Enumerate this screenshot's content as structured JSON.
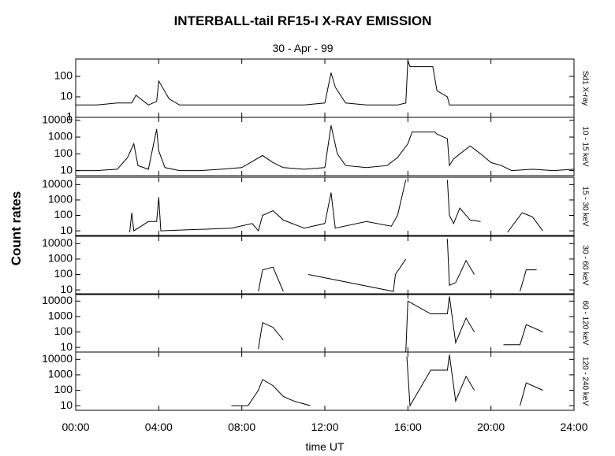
{
  "title": "INTERBALL-tail  RF15-I   X-RAY  EMISSION",
  "subtitle": "30 - Apr - 99",
  "y_label": "Count  rates",
  "x_label": "time UT",
  "chart_data": [
    {
      "type": "line",
      "log": true,
      "xlim": [
        0,
        24
      ],
      "xticks": [
        0,
        4,
        8,
        12,
        16,
        20,
        24
      ],
      "ylim": [
        1,
        700
      ],
      "yticks": [
        1,
        10,
        100
      ],
      "series": [
        {
          "name": "Sd1 X-ray",
          "color": "#000000",
          "x": [
            0,
            1,
            2,
            2.7,
            2.9,
            3.5,
            3.9,
            4.0,
            4.5,
            5,
            6,
            7,
            8,
            9,
            10,
            11,
            12,
            12.3,
            12.5,
            13,
            14,
            15,
            15.5,
            15.9,
            16.0,
            16.1,
            17.2,
            17.4,
            17.9,
            18.0,
            18.5,
            19,
            20,
            21,
            22,
            23,
            24
          ],
          "values": [
            4,
            4,
            5,
            5,
            12,
            4,
            6,
            60,
            8,
            4,
            4,
            4,
            4,
            4,
            4,
            4,
            5,
            150,
            30,
            5,
            4,
            4,
            4,
            5,
            600,
            300,
            300,
            20,
            10,
            4,
            4,
            4,
            4,
            4,
            4,
            4,
            4
          ]
        }
      ]
    },
    {
      "type": "line",
      "log": true,
      "xlim": [
        0,
        24
      ],
      "xticks": [
        0,
        4,
        8,
        12,
        16,
        20,
        24
      ],
      "ylim": [
        5,
        15000
      ],
      "yticks": [
        10,
        100,
        1000,
        10000
      ],
      "series": [
        {
          "name": "10 - 15 keV",
          "color": "#000000",
          "x": [
            0,
            1,
            2,
            2.5,
            2.8,
            3.0,
            3.5,
            3.9,
            4.0,
            4.3,
            5,
            6,
            7,
            8,
            9,
            9.5,
            10,
            11,
            12,
            12.3,
            12.6,
            13,
            14,
            15,
            15.5,
            16,
            16.2,
            17.3,
            17.4,
            17.9,
            18.0,
            18.2,
            19,
            19.5,
            20,
            20.5,
            21,
            22,
            23,
            24
          ],
          "values": [
            10,
            10,
            12,
            60,
            400,
            20,
            12,
            3000,
            150,
            15,
            10,
            10,
            12,
            15,
            80,
            30,
            15,
            12,
            15,
            5000,
            100,
            20,
            15,
            20,
            60,
            400,
            2000,
            2000,
            1500,
            800,
            20,
            50,
            300,
            100,
            30,
            20,
            10,
            12,
            10,
            12
          ]
        }
      ]
    },
    {
      "type": "line",
      "log": true,
      "xlim": [
        0,
        24
      ],
      "xticks": [
        0,
        4,
        8,
        12,
        16,
        20,
        24
      ],
      "ylim": [
        5,
        30000
      ],
      "yticks": [
        10,
        100,
        1000,
        10000
      ],
      "series": [
        {
          "name": "15 - 30 keV",
          "color": "#000000",
          "x": [
            2.6,
            2.7,
            2.8,
            3.5,
            3.9,
            4.0,
            4.1,
            7.5,
            8.5,
            8.8,
            9.0,
            9.5,
            10,
            11,
            12,
            12.3,
            12.5,
            14,
            15.2,
            15.5,
            15.9,
            16.0,
            17.9,
            18.0,
            18.2,
            18.5,
            19,
            19.5,
            20,
            20.8,
            21.5,
            22,
            22.5,
            23
          ],
          "values": [
            8,
            150,
            10,
            40,
            40,
            1500,
            10,
            15,
            30,
            10,
            100,
            200,
            50,
            15,
            30,
            3000,
            15,
            40,
            20,
            100,
            20000,
            null,
            20000,
            100,
            30,
            300,
            50,
            40,
            null,
            8,
            150,
            80,
            10,
            null
          ]
        }
      ]
    },
    {
      "type": "line",
      "log": true,
      "xlim": [
        0,
        24
      ],
      "xticks": [
        0,
        4,
        8,
        12,
        16,
        20,
        24
      ],
      "ylim": [
        5,
        30000
      ],
      "yticks": [
        10,
        100,
        1000,
        10000
      ],
      "series": [
        {
          "name": "30 - 60 keV",
          "color": "#000000",
          "x": [
            8.8,
            9.0,
            9.5,
            10,
            11.1,
            11.2,
            15.3,
            15.4,
            15.9,
            16.0,
            17.9,
            18.0,
            18.3,
            18.8,
            19.2,
            19.5,
            21.4,
            21.7,
            22.2,
            22.5
          ],
          "values": [
            8,
            200,
            300,
            8,
            null,
            100,
            8,
            100,
            1000,
            null,
            20000,
            20,
            30,
            800,
            100,
            null,
            8,
            200,
            200,
            null
          ]
        }
      ]
    },
    {
      "type": "line",
      "log": true,
      "xlim": [
        0,
        24
      ],
      "xticks": [
        0,
        4,
        8,
        12,
        16,
        20,
        24
      ],
      "ylim": [
        5,
        30000
      ],
      "yticks": [
        10,
        100,
        1000,
        10000
      ],
      "series": [
        {
          "name": "60 - 120 keV",
          "color": "#000000",
          "x": [
            8.8,
            9.0,
            9.5,
            10,
            10.3,
            15.9,
            16.0,
            17.1,
            17.9,
            18.0,
            18.3,
            18.8,
            19.2,
            19.5,
            20.6,
            21.4,
            21.7,
            22.5
          ],
          "values": [
            8,
            400,
            200,
            30,
            null,
            5,
            10000,
            1500,
            1500,
            20000,
            20,
            800,
            100,
            null,
            15,
            15,
            300,
            100
          ]
        }
      ]
    },
    {
      "type": "line",
      "log": true,
      "xlim": [
        0,
        24
      ],
      "xticks": [
        {
          "value": 0,
          "label": "00:00"
        },
        {
          "value": 4,
          "label": "04:00"
        },
        {
          "value": 8,
          "label": "08:00"
        },
        {
          "value": 12,
          "label": "12:00"
        },
        {
          "value": 16,
          "label": "16:00"
        },
        {
          "value": 20,
          "label": "20:00"
        },
        {
          "value": 24,
          "label": "24:00"
        }
      ],
      "ylim": [
        5,
        30000
      ],
      "yticks": [
        10,
        100,
        1000,
        10000
      ],
      "series": [
        {
          "name": "120 - 240 keV",
          "color": "#000000",
          "x": [
            7.5,
            8.3,
            8.8,
            9.0,
            9.5,
            10,
            10.5,
            11.3,
            15.8,
            15.95,
            16.1,
            17.1,
            17.9,
            18.0,
            18.3,
            18.8,
            19.2,
            19.5,
            21.4,
            21.7,
            22.5
          ],
          "values": [
            10,
            10,
            100,
            500,
            200,
            40,
            20,
            10,
            null,
            15000,
            10,
            2000,
            2000,
            20000,
            20,
            800,
            100,
            null,
            10,
            300,
            100
          ]
        }
      ]
    }
  ]
}
